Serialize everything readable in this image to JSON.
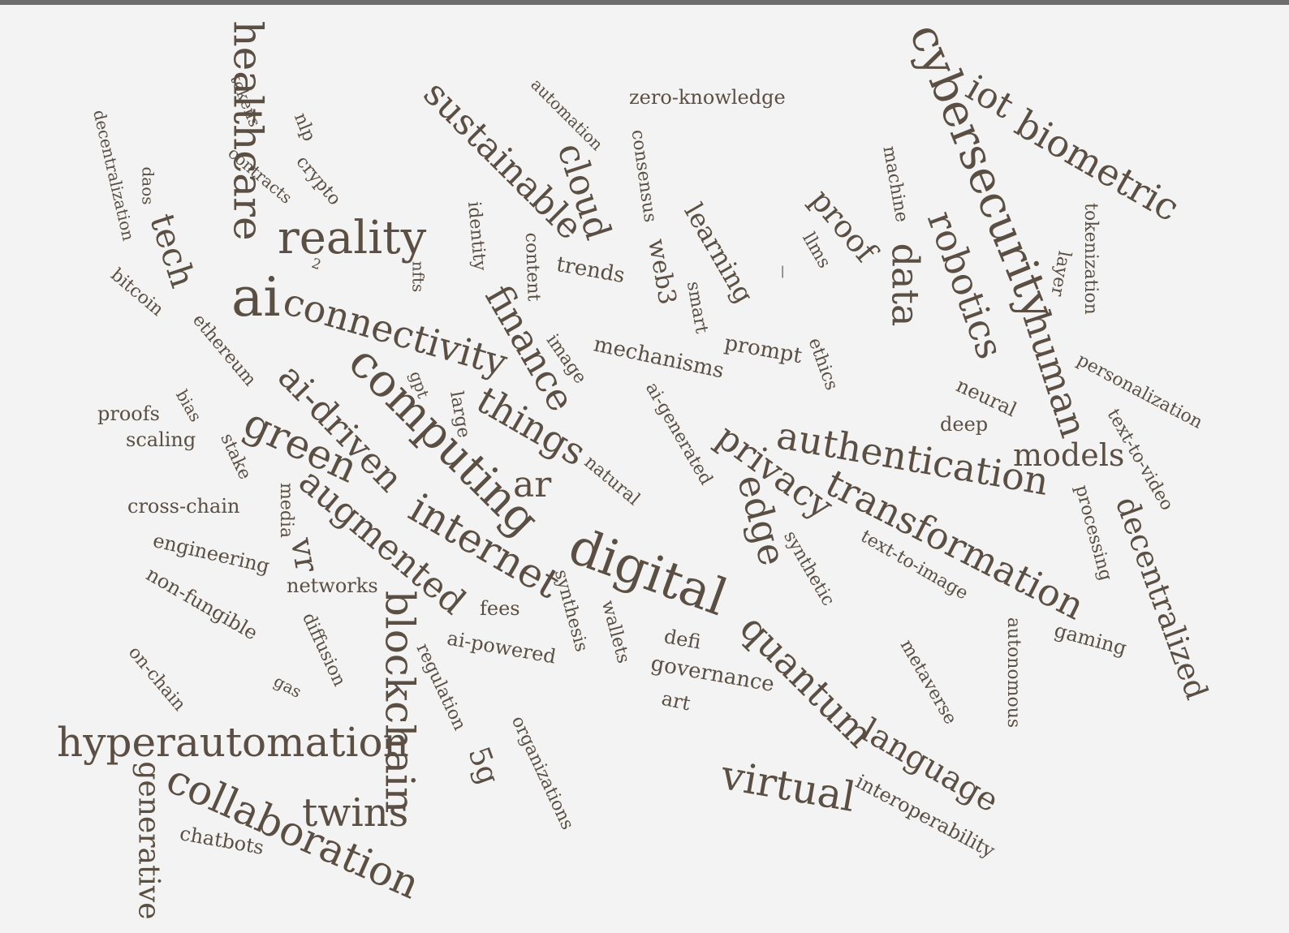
{
  "word_color": "#5b4f44",
  "background_color": "#f3f3f3",
  "top_bar_color": "#6d6d6d",
  "words": [
    {
      "text": "healthcare"
    },
    {
      "text": "tokens"
    },
    {
      "text": "nlp"
    },
    {
      "text": "decentralization"
    },
    {
      "text": "contracts"
    },
    {
      "text": "crypto"
    },
    {
      "text": "daos"
    },
    {
      "text": "tech"
    },
    {
      "text": "reality"
    },
    {
      "text": "2"
    },
    {
      "text": "bitcoin"
    },
    {
      "text": "ai"
    },
    {
      "text": "connectivity"
    },
    {
      "text": "nfts"
    },
    {
      "text": "ethereum"
    },
    {
      "text": "computing"
    },
    {
      "text": "ai-driven"
    },
    {
      "text": "gpt"
    },
    {
      "text": "large"
    },
    {
      "text": "proofs"
    },
    {
      "text": "bias"
    },
    {
      "text": "scaling"
    },
    {
      "text": "green"
    },
    {
      "text": "stake"
    },
    {
      "text": "cross-chain"
    },
    {
      "text": "media"
    },
    {
      "text": "augmented"
    },
    {
      "text": "engineering"
    },
    {
      "text": "vr"
    },
    {
      "text": "networks"
    },
    {
      "text": "non-fungible"
    },
    {
      "text": "diffusion"
    },
    {
      "text": "blockchain"
    },
    {
      "text": "on-chain"
    },
    {
      "text": "gas"
    },
    {
      "text": "hyperautomation"
    },
    {
      "text": "generative"
    },
    {
      "text": "collaboration"
    },
    {
      "text": "twins"
    },
    {
      "text": "chatbots"
    },
    {
      "text": "automation"
    },
    {
      "text": "sustainable"
    },
    {
      "text": "zero-knowledge"
    },
    {
      "text": "cloud"
    },
    {
      "text": "consensus"
    },
    {
      "text": "identity"
    },
    {
      "text": "content"
    },
    {
      "text": "trends"
    },
    {
      "text": "web3"
    },
    {
      "text": "learning"
    },
    {
      "text": "smart"
    },
    {
      "text": "finance"
    },
    {
      "text": "image"
    },
    {
      "text": "mechanisms"
    },
    {
      "text": "things"
    },
    {
      "text": "ai-generated"
    },
    {
      "text": "ar"
    },
    {
      "text": "natural"
    },
    {
      "text": "internet"
    },
    {
      "text": "digital"
    },
    {
      "text": "fees"
    },
    {
      "text": "synthesis"
    },
    {
      "text": "ai-powered"
    },
    {
      "text": "wallets"
    },
    {
      "text": "regulation"
    },
    {
      "text": "defi"
    },
    {
      "text": "governance"
    },
    {
      "text": "art"
    },
    {
      "text": "5g"
    },
    {
      "text": "organizations"
    },
    {
      "text": "cybersecurity"
    },
    {
      "text": "iot"
    },
    {
      "text": "biometric"
    },
    {
      "text": "machine"
    },
    {
      "text": "proof"
    },
    {
      "text": "llms"
    },
    {
      "text": "_"
    },
    {
      "text": "data"
    },
    {
      "text": "robotics"
    },
    {
      "text": "tokenization"
    },
    {
      "text": "layer"
    },
    {
      "text": "human"
    },
    {
      "text": "prompt"
    },
    {
      "text": "ethics"
    },
    {
      "text": "personalization"
    },
    {
      "text": "neural"
    },
    {
      "text": "deep"
    },
    {
      "text": "text-to-video"
    },
    {
      "text": "authentication"
    },
    {
      "text": "models"
    },
    {
      "text": "privacy"
    },
    {
      "text": "edge"
    },
    {
      "text": "transformation"
    },
    {
      "text": "processing"
    },
    {
      "text": "synthetic"
    },
    {
      "text": "text-to-image"
    },
    {
      "text": "decentralized"
    },
    {
      "text": "quantum"
    },
    {
      "text": "gaming"
    },
    {
      "text": "metaverse"
    },
    {
      "text": "autonomous"
    },
    {
      "text": "language"
    },
    {
      "text": "virtual"
    },
    {
      "text": "interoperability"
    }
  ]
}
